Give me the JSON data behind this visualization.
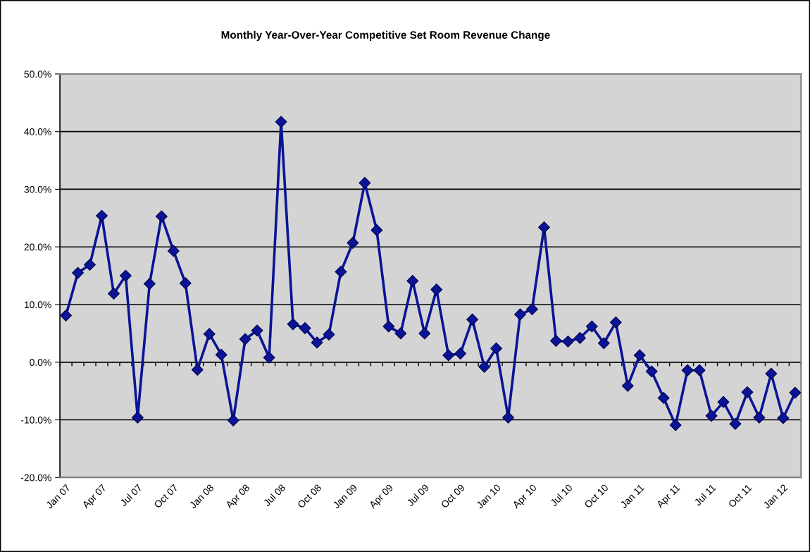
{
  "chart_data": {
    "type": "line",
    "title": "Monthly Year-Over-Year Competitive Set Room Revenue Change",
    "categories": [
      "Jan 07",
      null,
      null,
      "Apr 07",
      null,
      null,
      "Jul 07",
      null,
      null,
      "Oct 07",
      null,
      null,
      "Jan 08",
      null,
      null,
      "Apr 08",
      null,
      null,
      "Jul 08",
      null,
      null,
      "Oct 08",
      null,
      null,
      "Jan 09",
      null,
      null,
      "Apr 09",
      null,
      null,
      "Jul 09",
      null,
      null,
      "Oct 09",
      null,
      null,
      "Jan 10",
      null,
      null,
      "Apr 10",
      null,
      null,
      "Jul 10",
      null,
      null,
      "Oct 10",
      null,
      null,
      "Jan 11",
      null,
      null,
      "Apr 11",
      null,
      null,
      "Jul 11",
      null,
      null,
      "Oct 11",
      null,
      null,
      "Jan 12",
      null
    ],
    "series": [
      {
        "color": "#0a1496",
        "values": [
          8.1,
          15.5,
          16.9,
          25.4,
          11.9,
          15.0,
          -9.6,
          13.6,
          25.3,
          19.3,
          13.7,
          -1.3,
          4.9,
          1.3,
          -10.1,
          4.0,
          5.5,
          0.8,
          41.7,
          6.6,
          5.9,
          3.4,
          4.8,
          15.7,
          20.7,
          31.1,
          22.9,
          6.2,
          5.0,
          14.1,
          5.0,
          12.6,
          1.2,
          1.5,
          7.4,
          -0.8,
          2.4,
          -9.6,
          8.3,
          9.2,
          23.4,
          3.7,
          3.6,
          4.2,
          6.2,
          3.3,
          6.9,
          -4.1,
          1.2,
          -1.6,
          -6.2,
          -10.9,
          -1.4,
          -1.4,
          -9.3,
          -6.9,
          -10.7,
          -5.2,
          -9.6,
          -2.0,
          -9.7,
          -5.3
        ]
      }
    ],
    "ylim": [
      -20,
      50
    ],
    "yticks": [
      {
        "value": -20,
        "label": "-20.0%"
      },
      {
        "value": -10,
        "label": "-10.0%"
      },
      {
        "value": 0,
        "label": "0.0%"
      },
      {
        "value": 10,
        "label": "10.0%"
      },
      {
        "value": 20,
        "label": "20.0%"
      },
      {
        "value": 30,
        "label": "30.0%"
      },
      {
        "value": 40,
        "label": "40.0%"
      },
      {
        "value": 50,
        "label": "50.0%"
      }
    ],
    "grid": "y",
    "marker": "diamond",
    "line_style": "solid"
  }
}
